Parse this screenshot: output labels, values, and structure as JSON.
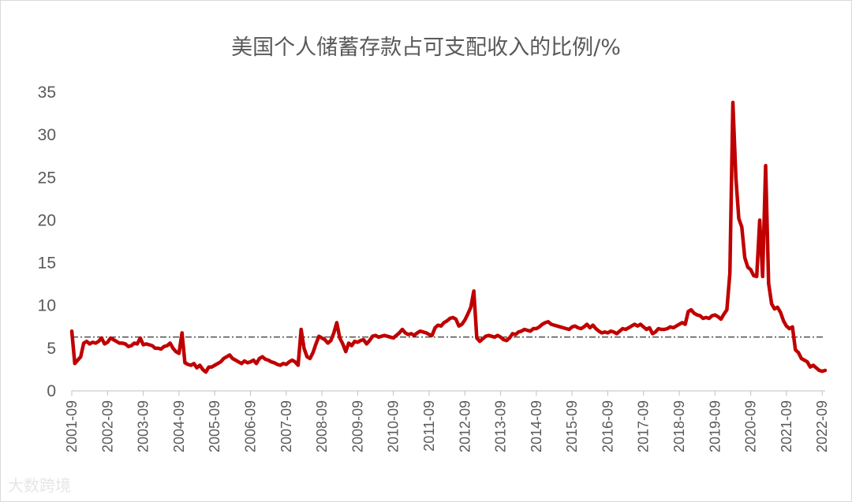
{
  "chart_data": {
    "type": "line",
    "title": "美国个人储蓄存款占可支配收入的比例/%",
    "ylim": [
      0,
      35
    ],
    "yticks": [
      0,
      5,
      10,
      15,
      20,
      25,
      30,
      35
    ],
    "xticks": [
      "2001-09",
      "2002-09",
      "2003-09",
      "2004-09",
      "2005-09",
      "2006-09",
      "2007-09",
      "2008-09",
      "2009-09",
      "2010-09",
      "2011-09",
      "2012-09",
      "2013-09",
      "2014-09",
      "2015-09",
      "2016-09",
      "2017-09",
      "2018-09",
      "2019-09",
      "2020-09",
      "2021-09",
      "2022-09"
    ],
    "x_start": "2001-09",
    "reference_line": 6.3,
    "series_color": "#c00000",
    "reference_color": "#000000",
    "values": [
      7.0,
      3.2,
      3.6,
      4.0,
      5.6,
      5.8,
      5.5,
      5.7,
      5.6,
      5.8,
      6.2,
      5.5,
      5.7,
      6.2,
      6.0,
      5.8,
      5.6,
      5.6,
      5.5,
      5.2,
      5.3,
      5.6,
      5.5,
      6.2,
      5.4,
      5.5,
      5.4,
      5.3,
      5.0,
      5.0,
      4.9,
      5.2,
      5.3,
      5.6,
      5.0,
      4.6,
      4.4,
      6.8,
      3.3,
      3.1,
      3.0,
      3.2,
      2.7,
      3.0,
      2.5,
      2.2,
      2.8,
      2.8,
      3.0,
      3.2,
      3.4,
      3.8,
      4.0,
      4.2,
      3.8,
      3.6,
      3.4,
      3.2,
      3.5,
      3.3,
      3.4,
      3.6,
      3.2,
      3.8,
      4.0,
      3.7,
      3.6,
      3.4,
      3.3,
      3.1,
      3.0,
      3.2,
      3.1,
      3.4,
      3.6,
      3.4,
      3.0,
      7.2,
      5.0,
      4.0,
      3.8,
      4.5,
      5.5,
      6.4,
      6.2,
      6.0,
      5.6,
      5.9,
      6.8,
      8.0,
      6.2,
      5.5,
      4.6,
      5.6,
      5.3,
      5.8,
      5.7,
      5.9,
      6.0,
      5.5,
      5.9,
      6.4,
      6.5,
      6.3,
      6.4,
      6.5,
      6.4,
      6.3,
      6.2,
      6.5,
      6.8,
      7.2,
      6.8,
      6.6,
      6.7,
      6.5,
      6.8,
      7.0,
      6.9,
      6.8,
      6.6,
      6.5,
      7.4,
      7.7,
      7.6,
      8.0,
      8.2,
      8.5,
      8.6,
      8.4,
      7.6,
      7.8,
      8.3,
      9.0,
      9.8,
      11.7,
      6.2,
      5.8,
      6.1,
      6.4,
      6.5,
      6.4,
      6.3,
      6.5,
      6.3,
      6.0,
      5.9,
      6.2,
      6.7,
      6.6,
      6.9,
      7.0,
      7.2,
      7.1,
      7.0,
      7.3,
      7.3,
      7.5,
      7.8,
      8.0,
      8.1,
      7.8,
      7.7,
      7.6,
      7.5,
      7.4,
      7.3,
      7.2,
      7.5,
      7.6,
      7.4,
      7.3,
      7.5,
      7.8,
      7.4,
      7.7,
      7.3,
      7.0,
      6.8,
      6.9,
      6.8,
      7.0,
      6.9,
      6.7,
      7.0,
      7.3,
      7.2,
      7.4,
      7.6,
      7.8,
      7.6,
      7.8,
      7.5,
      7.2,
      7.4,
      6.7,
      6.9,
      7.3,
      7.2,
      7.2,
      7.3,
      7.5,
      7.4,
      7.6,
      7.8,
      8.0,
      7.8,
      9.3,
      9.5,
      9.1,
      8.9,
      8.8,
      8.5,
      8.6,
      8.5,
      8.8,
      8.9,
      8.7,
      8.4,
      9.0,
      9.5,
      13.8,
      33.8,
      25.0,
      20.2,
      19.2,
      15.6,
      14.5,
      14.2,
      13.5,
      13.4,
      20.0,
      13.4,
      26.4,
      12.6,
      10.2,
      9.6,
      9.8,
      9.2,
      8.2,
      7.6,
      7.3,
      7.5,
      4.8,
      4.5,
      3.8,
      3.6,
      3.4,
      2.8,
      3.0,
      2.7,
      2.4,
      2.3,
      2.4
    ]
  },
  "watermark": {
    "text": "大数跨境"
  }
}
